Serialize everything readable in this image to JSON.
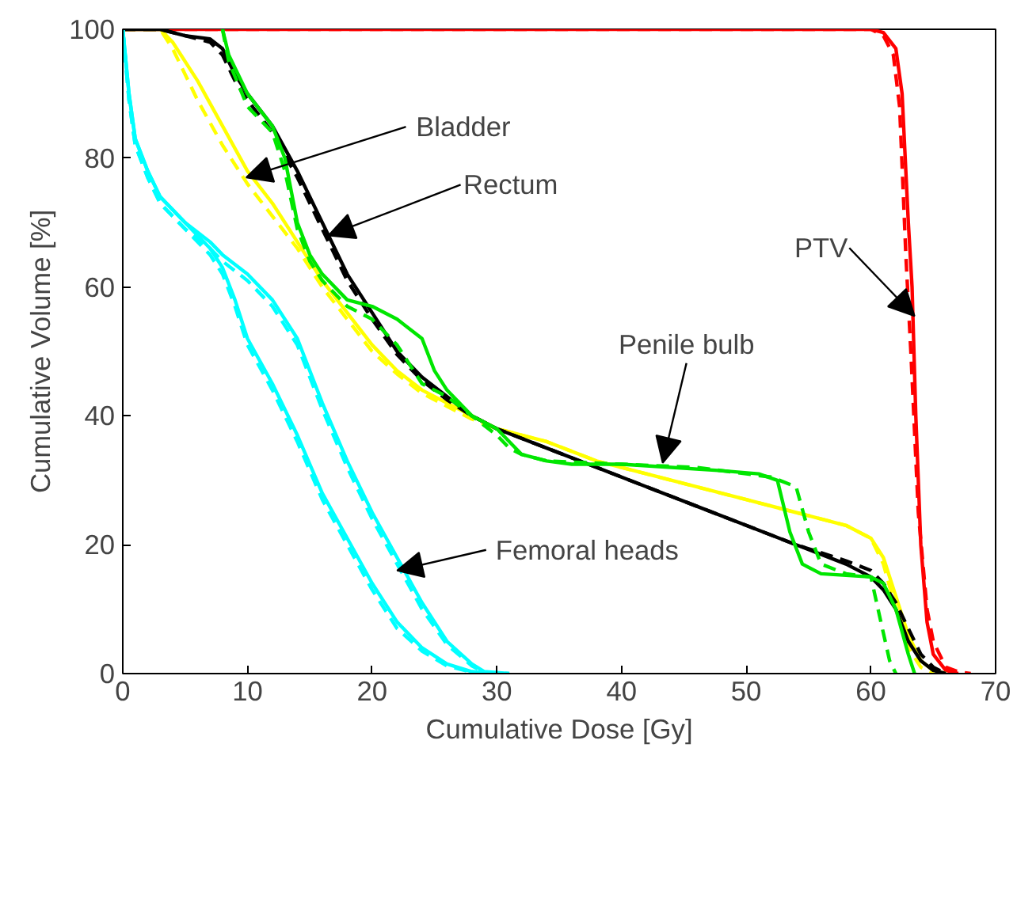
{
  "chart_data": {
    "type": "line",
    "xlabel": "Cumulative Dose [Gy]",
    "ylabel": "Cumulative Volume [%]",
    "xlim": [
      0,
      70
    ],
    "ylim": [
      0,
      100
    ],
    "xticks": [
      0,
      10,
      20,
      30,
      40,
      50,
      60,
      70
    ],
    "yticks": [
      0,
      20,
      40,
      60,
      80,
      100
    ],
    "grid": false,
    "series": [
      {
        "color": "#ff0000",
        "line_style": "solid",
        "x": [
          0,
          60,
          61,
          62,
          62.5,
          63,
          63.3,
          63.6,
          64,
          64.5,
          65,
          66,
          67
        ],
        "values": [
          100,
          100,
          99.5,
          97,
          90,
          70,
          60,
          40,
          20,
          8,
          3,
          0.5,
          0
        ]
      },
      {
        "color": "#ff0000",
        "line_style": "dashed",
        "x": [
          0,
          60,
          61,
          61.8,
          62.3,
          62.8,
          63.2,
          63.8,
          64.5,
          65,
          66,
          67,
          68
        ],
        "values": [
          100,
          100,
          99,
          96,
          88,
          65,
          50,
          25,
          10,
          5,
          1,
          0.3,
          0
        ]
      },
      {
        "color": "#ffff00",
        "line_style": "solid",
        "x": [
          0,
          3,
          4,
          6,
          8,
          10,
          12,
          14,
          16,
          18,
          20,
          22,
          24,
          26,
          28,
          30,
          34,
          38,
          42,
          46,
          50,
          54,
          58,
          60,
          61,
          62,
          63,
          64,
          65,
          66
        ],
        "values": [
          100,
          100,
          98,
          92,
          85,
          78,
          73,
          67,
          61,
          56,
          51,
          47,
          44,
          42,
          40,
          38,
          36,
          33,
          31,
          29,
          27,
          25,
          23,
          21,
          18,
          12,
          6,
          2,
          0.5,
          0
        ]
      },
      {
        "color": "#ffff00",
        "line_style": "dashed",
        "x": [
          0,
          3,
          4,
          6,
          8,
          10,
          12,
          14,
          16,
          18,
          20,
          22,
          24,
          26,
          28,
          30,
          34,
          38,
          42,
          46,
          50,
          54,
          58,
          60,
          61,
          62,
          63,
          64,
          65
        ],
        "values": [
          100,
          100,
          97,
          89,
          82,
          76,
          71,
          66,
          60,
          55,
          50,
          46.5,
          43.5,
          41.5,
          39.5,
          38,
          36,
          33,
          31,
          29,
          27,
          25,
          23,
          21,
          17,
          10,
          4,
          1,
          0
        ]
      },
      {
        "color": "#000000",
        "line_style": "solid",
        "x": [
          0,
          3,
          5,
          7,
          8,
          9,
          10,
          12,
          14,
          16,
          18,
          20,
          22,
          24,
          26,
          28,
          30,
          34,
          38,
          42,
          46,
          50,
          54,
          58,
          60,
          61,
          62,
          63,
          64,
          65,
          66
        ],
        "values": [
          100,
          100,
          99,
          98.5,
          97,
          93,
          90,
          85,
          78,
          70,
          62,
          56,
          50,
          46,
          43,
          40,
          38,
          35,
          32,
          29,
          26,
          23,
          20,
          17,
          15,
          13,
          10,
          5,
          2,
          0.5,
          0
        ]
      },
      {
        "color": "#000000",
        "line_style": "dashed",
        "x": [
          0,
          3,
          5,
          7,
          8,
          9,
          10,
          12,
          14,
          16,
          18,
          20,
          22,
          24,
          26,
          28,
          30,
          34,
          38,
          42,
          46,
          50,
          54,
          58,
          60,
          61,
          62,
          63,
          64,
          65,
          66
        ],
        "values": [
          100,
          100,
          99,
          98,
          96,
          92,
          89,
          84,
          77,
          69,
          61,
          55,
          49.5,
          45.5,
          42.5,
          40,
          38,
          35,
          32,
          29,
          26,
          23,
          20,
          17.5,
          16,
          14,
          11,
          7,
          3,
          1,
          0
        ]
      },
      {
        "color": "#00e600",
        "line_style": "solid",
        "x": [
          8,
          8.5,
          10,
          12,
          13,
          14,
          15,
          16,
          18,
          20,
          22,
          24,
          25,
          26,
          27,
          28,
          30,
          31,
          32,
          34,
          36,
          40,
          44,
          48,
          51,
          52.5,
          53.5,
          54.5,
          56,
          60,
          61,
          62,
          63,
          63.5
        ],
        "values": [
          100,
          96,
          90,
          85,
          80,
          70,
          65,
          62,
          58,
          57,
          55,
          52,
          47,
          44,
          42,
          40,
          38,
          36,
          34,
          33,
          32.5,
          32.5,
          32,
          31.5,
          31,
          30,
          22,
          17,
          15.5,
          15,
          14,
          10,
          3,
          0
        ]
      },
      {
        "color": "#00e600",
        "line_style": "dashed",
        "x": [
          8,
          8.5,
          10,
          12,
          13,
          14,
          15,
          16,
          18,
          20,
          22,
          24,
          25,
          26,
          28,
          30,
          31,
          32,
          34,
          40,
          46,
          50,
          52,
          54,
          55,
          56,
          58,
          60,
          60.8,
          61.5,
          62
        ],
        "values": [
          100,
          95,
          88,
          84,
          78,
          69,
          64,
          61,
          57,
          55,
          51,
          45,
          44,
          43,
          40,
          37,
          35,
          34,
          33,
          32.5,
          32,
          31,
          30.5,
          29,
          22,
          17,
          15.5,
          15,
          8,
          2,
          0
        ]
      },
      {
        "color": "#00ffff",
        "line_style": "solid",
        "x": [
          0,
          0.5,
          1,
          2,
          3,
          5,
          7,
          8,
          9,
          10,
          12,
          14,
          16,
          18,
          20,
          22,
          24,
          26,
          28,
          30
        ],
        "values": [
          100,
          90,
          83,
          78,
          74,
          70,
          66,
          63,
          58,
          52,
          45,
          37,
          28,
          21,
          14,
          8,
          4,
          1.5,
          0.3,
          0
        ]
      },
      {
        "color": "#00ffff",
        "line_style": "dashed",
        "x": [
          0,
          0.5,
          1,
          2,
          3,
          5,
          7,
          8,
          9,
          10,
          12,
          14,
          16,
          18,
          20,
          22,
          24,
          26,
          28,
          30
        ],
        "values": [
          100,
          89,
          82,
          77,
          73,
          69,
          65,
          62,
          57,
          51,
          44,
          36,
          27,
          20,
          13,
          7,
          3.5,
          1.2,
          0.2,
          0
        ]
      },
      {
        "color": "#00ffff",
        "line_style": "solid",
        "x": [
          0,
          0.5,
          1,
          2,
          3,
          5,
          7,
          8,
          10,
          12,
          14,
          16,
          18,
          20,
          22,
          24,
          26,
          28,
          29,
          31
        ],
        "values": [
          100,
          90,
          83,
          78,
          74,
          70,
          67,
          65,
          62,
          58,
          52,
          42,
          33,
          25,
          18,
          11,
          5,
          1.5,
          0.3,
          0
        ]
      },
      {
        "color": "#00ffff",
        "line_style": "dashed",
        "x": [
          0,
          0.5,
          1,
          2,
          3,
          5,
          7,
          8,
          10,
          12,
          14,
          16,
          18,
          20,
          22,
          24,
          26,
          28,
          29,
          31
        ],
        "values": [
          100,
          89,
          82,
          77,
          73,
          69,
          66,
          64,
          61,
          57,
          51,
          41,
          32,
          24,
          17,
          10,
          4.5,
          1.2,
          0.2,
          0
        ]
      }
    ],
    "annotations": [
      {
        "text": "Bladder",
        "x": 9.9,
        "y": 77
      },
      {
        "text": "Rectum",
        "x": 16.5,
        "y": 68
      },
      {
        "text": "PTV",
        "x": 63.5,
        "y": 55.5
      },
      {
        "text": "Penile bulb",
        "x": 43.3,
        "y": 32.7
      },
      {
        "text": "Femoral heads",
        "x": 22,
        "y": 16
      }
    ]
  }
}
